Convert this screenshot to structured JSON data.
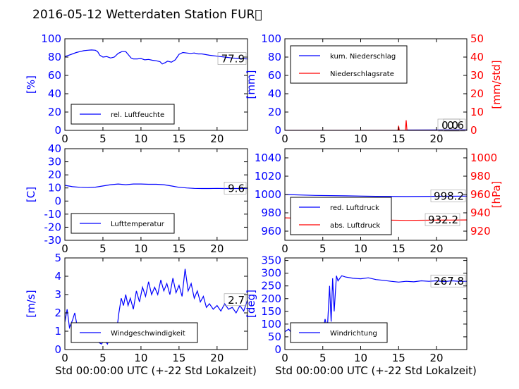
{
  "figure": {
    "title": "2016-05-12 Wetterdaten Station FUR\u0000",
    "xlabel": "Std 00:00:00 UTC (+-22 Std Lokalzeit)",
    "colors": {
      "left_axis": "#0000ff",
      "right_axis": "#ff0000",
      "bg": "#ffffff",
      "ink": "#000000"
    }
  },
  "chart_data": [
    {
      "id": "humidity",
      "type": "line",
      "xlim": [
        0,
        24
      ],
      "xticks": [
        0,
        5,
        10,
        15,
        20
      ],
      "ylim": [
        0,
        100
      ],
      "yticks": [
        0,
        20,
        40,
        60,
        80,
        100
      ],
      "ylabel": "[%]",
      "series": [
        {
          "name": "rel. Luftfeuchte",
          "color": "#0000ff",
          "points": [
            [
              0,
              80.5
            ],
            [
              0.5,
              82
            ],
            [
              1,
              83.5
            ],
            [
              1.5,
              85
            ],
            [
              2,
              86
            ],
            [
              2.5,
              87
            ],
            [
              3,
              87.5
            ],
            [
              3.5,
              87.8
            ],
            [
              4,
              87.5
            ],
            [
              4.3,
              86
            ],
            [
              4.6,
              82
            ],
            [
              5,
              80
            ],
            [
              5.5,
              80.5
            ],
            [
              6,
              79
            ],
            [
              6.5,
              80
            ],
            [
              7,
              84
            ],
            [
              7.5,
              86
            ],
            [
              8,
              86
            ],
            [
              8.3,
              83
            ],
            [
              8.7,
              79
            ],
            [
              9,
              78
            ],
            [
              9.5,
              78
            ],
            [
              10,
              78.5
            ],
            [
              10.5,
              77
            ],
            [
              11,
              77.5
            ],
            [
              11.5,
              76.5
            ],
            [
              12,
              76
            ],
            [
              12.5,
              75
            ],
            [
              12.8,
              72.5
            ],
            [
              13.2,
              74
            ],
            [
              13.5,
              75.5
            ],
            [
              14,
              74.5
            ],
            [
              14.5,
              77
            ],
            [
              15,
              83
            ],
            [
              15.5,
              85
            ],
            [
              16,
              84.5
            ],
            [
              16.5,
              84
            ],
            [
              17,
              84.5
            ],
            [
              17.5,
              83.5
            ],
            [
              18,
              83.5
            ],
            [
              19,
              82
            ],
            [
              20,
              81
            ],
            [
              21,
              80
            ],
            [
              22,
              79
            ],
            [
              23,
              78.5
            ],
            [
              24,
              78
            ]
          ]
        }
      ],
      "last_value_label": "77.9"
    },
    {
      "id": "precip",
      "type": "line",
      "xlim": [
        0,
        24
      ],
      "xticks": [
        0,
        5,
        10,
        15,
        20
      ],
      "ylim": [
        0,
        100
      ],
      "yticks": [
        0,
        20,
        40,
        60,
        80,
        100
      ],
      "ylabel": "[mm]",
      "y2lim": [
        0,
        50
      ],
      "y2ticks": [
        0,
        10,
        20,
        30,
        40,
        50
      ],
      "y2label": "[mm/std]",
      "series": [
        {
          "name": "kum. Niederschlag",
          "color": "#0000ff",
          "axis": "left",
          "points": [
            [
              0,
              0
            ],
            [
              16,
              0
            ],
            [
              16.1,
              0.4
            ],
            [
              24,
              0.6
            ]
          ]
        },
        {
          "name": "Niederschlagsrate",
          "color": "#ff0000",
          "axis": "right",
          "points": [
            [
              0,
              0
            ],
            [
              14.9,
              0
            ],
            [
              15,
              2.5
            ],
            [
              15.1,
              0
            ],
            [
              15.9,
              0
            ],
            [
              16,
              5.5
            ],
            [
              16.1,
              0
            ],
            [
              24,
              0
            ]
          ]
        }
      ],
      "last_value_labels": [
        "0.6",
        "0.0"
      ]
    },
    {
      "id": "temperature",
      "type": "line",
      "xlim": [
        0,
        24
      ],
      "xticks": [
        0,
        5,
        10,
        15,
        20
      ],
      "ylim": [
        -30,
        40
      ],
      "yticks": [
        -30,
        -20,
        -10,
        0,
        10,
        20,
        30,
        40
      ],
      "ylabel": "[C]",
      "series": [
        {
          "name": "Lufttemperatur",
          "color": "#0000ff",
          "points": [
            [
              0,
              12
            ],
            [
              1,
              11
            ],
            [
              2,
              10.5
            ],
            [
              3,
              10.3
            ],
            [
              4,
              10.6
            ],
            [
              5,
              11.5
            ],
            [
              6,
              12.5
            ],
            [
              7,
              13
            ],
            [
              8,
              12.5
            ],
            [
              9,
              13
            ],
            [
              10,
              13
            ],
            [
              11,
              12.8
            ],
            [
              12,
              12.8
            ],
            [
              13,
              12.5
            ],
            [
              14,
              11.5
            ],
            [
              15,
              10.5
            ],
            [
              16,
              10
            ],
            [
              17,
              9.7
            ],
            [
              18,
              9.6
            ],
            [
              19,
              9.6
            ],
            [
              20,
              9.7
            ],
            [
              21,
              9.6
            ],
            [
              22,
              9.6
            ],
            [
              23,
              9.6
            ],
            [
              24,
              9.6
            ]
          ]
        }
      ],
      "last_value_label": "9.6"
    },
    {
      "id": "pressure",
      "type": "line",
      "xlim": [
        0,
        24
      ],
      "xticks": [
        0,
        5,
        10,
        15,
        20
      ],
      "ylim": [
        950,
        1050
      ],
      "yticks": [
        960,
        980,
        1000,
        1020,
        1040
      ],
      "y2lim": [
        910,
        1010
      ],
      "y2ticks": [
        920,
        940,
        960,
        980,
        1000
      ],
      "y2label": "[hPa]",
      "series": [
        {
          "name": "red. Luftdruck",
          "color": "#0000ff",
          "axis": "left",
          "points": [
            [
              0,
              1000
            ],
            [
              4,
              999
            ],
            [
              8,
              998.5
            ],
            [
              12,
              998
            ],
            [
              16,
              997.8
            ],
            [
              20,
              998
            ],
            [
              24,
              998.2
            ]
          ]
        },
        {
          "name": "abs. Luftdruck",
          "color": "#ff0000",
          "axis": "right",
          "points": [
            [
              0,
              934.5
            ],
            [
              4,
              933.5
            ],
            [
              8,
              932.8
            ],
            [
              12,
              932.2
            ],
            [
              16,
              931.8
            ],
            [
              20,
              932
            ],
            [
              24,
              932.2
            ]
          ]
        }
      ],
      "last_value_labels": [
        "998.2",
        "932.2"
      ]
    },
    {
      "id": "wind",
      "type": "line",
      "xlim": [
        0,
        24
      ],
      "xticks": [
        0,
        5,
        10,
        15,
        20
      ],
      "ylim": [
        0,
        5
      ],
      "yticks": [
        0,
        1,
        2,
        3,
        4,
        5
      ],
      "ylabel": "[m/s]",
      "series": [
        {
          "name": "Windgeschwindigkeit",
          "color": "#0000ff",
          "points": [
            [
              0,
              1.5
            ],
            [
              0.3,
              2.2
            ],
            [
              0.6,
              1.2
            ],
            [
              1,
              1.6
            ],
            [
              1.3,
              2.0
            ],
            [
              1.6,
              1.3
            ],
            [
              2,
              0.9
            ],
            [
              2.4,
              1.2
            ],
            [
              2.8,
              0.6
            ],
            [
              3.2,
              1.0
            ],
            [
              3.6,
              0.5
            ],
            [
              4,
              0.8
            ],
            [
              4.4,
              0.4
            ],
            [
              4.8,
              0.3
            ],
            [
              5.2,
              0.5
            ],
            [
              5.6,
              0.3
            ],
            [
              6,
              0.8
            ],
            [
              6.4,
              0.5
            ],
            [
              6.8,
              1.0
            ],
            [
              7.1,
              2.0
            ],
            [
              7.4,
              2.8
            ],
            [
              7.7,
              2.4
            ],
            [
              8,
              3.0
            ],
            [
              8.3,
              2.4
            ],
            [
              8.6,
              2.8
            ],
            [
              9,
              2.2
            ],
            [
              9.4,
              3.2
            ],
            [
              9.8,
              2.6
            ],
            [
              10.2,
              3.4
            ],
            [
              10.6,
              2.9
            ],
            [
              11,
              3.7
            ],
            [
              11.4,
              3.0
            ],
            [
              11.8,
              3.4
            ],
            [
              12.2,
              3.0
            ],
            [
              12.6,
              3.8
            ],
            [
              13,
              3.2
            ],
            [
              13.4,
              3.6
            ],
            [
              13.8,
              3.0
            ],
            [
              14.2,
              3.9
            ],
            [
              14.6,
              3.1
            ],
            [
              15,
              3.5
            ],
            [
              15.4,
              2.9
            ],
            [
              15.8,
              4.4
            ],
            [
              16.2,
              3.2
            ],
            [
              16.6,
              3.6
            ],
            [
              17,
              2.8
            ],
            [
              17.4,
              3.2
            ],
            [
              17.8,
              2.6
            ],
            [
              18.2,
              2.9
            ],
            [
              18.6,
              2.3
            ],
            [
              19,
              2.5
            ],
            [
              19.5,
              2.2
            ],
            [
              20,
              2.4
            ],
            [
              20.5,
              2.1
            ],
            [
              21,
              2.5
            ],
            [
              21.5,
              2.2
            ],
            [
              22,
              2.3
            ],
            [
              22.5,
              2.0
            ],
            [
              23,
              2.4
            ],
            [
              23.5,
              2.1
            ],
            [
              24,
              2.7
            ]
          ]
        }
      ],
      "last_value_label": "2.7"
    },
    {
      "id": "winddir",
      "type": "line",
      "xlim": [
        0,
        24
      ],
      "xticks": [
        0,
        5,
        10,
        15,
        20
      ],
      "ylim": [
        0,
        360
      ],
      "yticks": [
        0,
        50,
        100,
        150,
        200,
        250,
        300,
        350
      ],
      "ylabel": "[deg]",
      "series": [
        {
          "name": "Windrichtung",
          "color": "#0000ff",
          "points": [
            [
              0,
              70
            ],
            [
              0.5,
              80
            ],
            [
              1,
              60
            ],
            [
              1.5,
              90
            ],
            [
              2,
              70
            ],
            [
              2.5,
              65
            ],
            [
              3,
              75
            ],
            [
              3.5,
              60
            ],
            [
              4,
              70
            ],
            [
              4.5,
              65
            ],
            [
              5,
              70
            ],
            [
              5.3,
              120
            ],
            [
              5.6,
              80
            ],
            [
              5.9,
              250
            ],
            [
              6.1,
              110
            ],
            [
              6.3,
              280
            ],
            [
              6.5,
              150
            ],
            [
              6.8,
              290
            ],
            [
              7,
              270
            ],
            [
              7.5,
              290
            ],
            [
              8,
              285
            ],
            [
              9,
              280
            ],
            [
              10,
              278
            ],
            [
              11,
              282
            ],
            [
              12,
              275
            ],
            [
              13,
              272
            ],
            [
              14,
              268
            ],
            [
              15,
              265
            ],
            [
              16,
              268
            ],
            [
              17,
              266
            ],
            [
              18,
              270
            ],
            [
              19,
              268
            ],
            [
              20,
              270
            ],
            [
              21,
              267
            ],
            [
              22,
              270
            ],
            [
              23,
              268
            ],
            [
              24,
              268
            ]
          ]
        }
      ],
      "last_value_label": "267.8"
    }
  ]
}
